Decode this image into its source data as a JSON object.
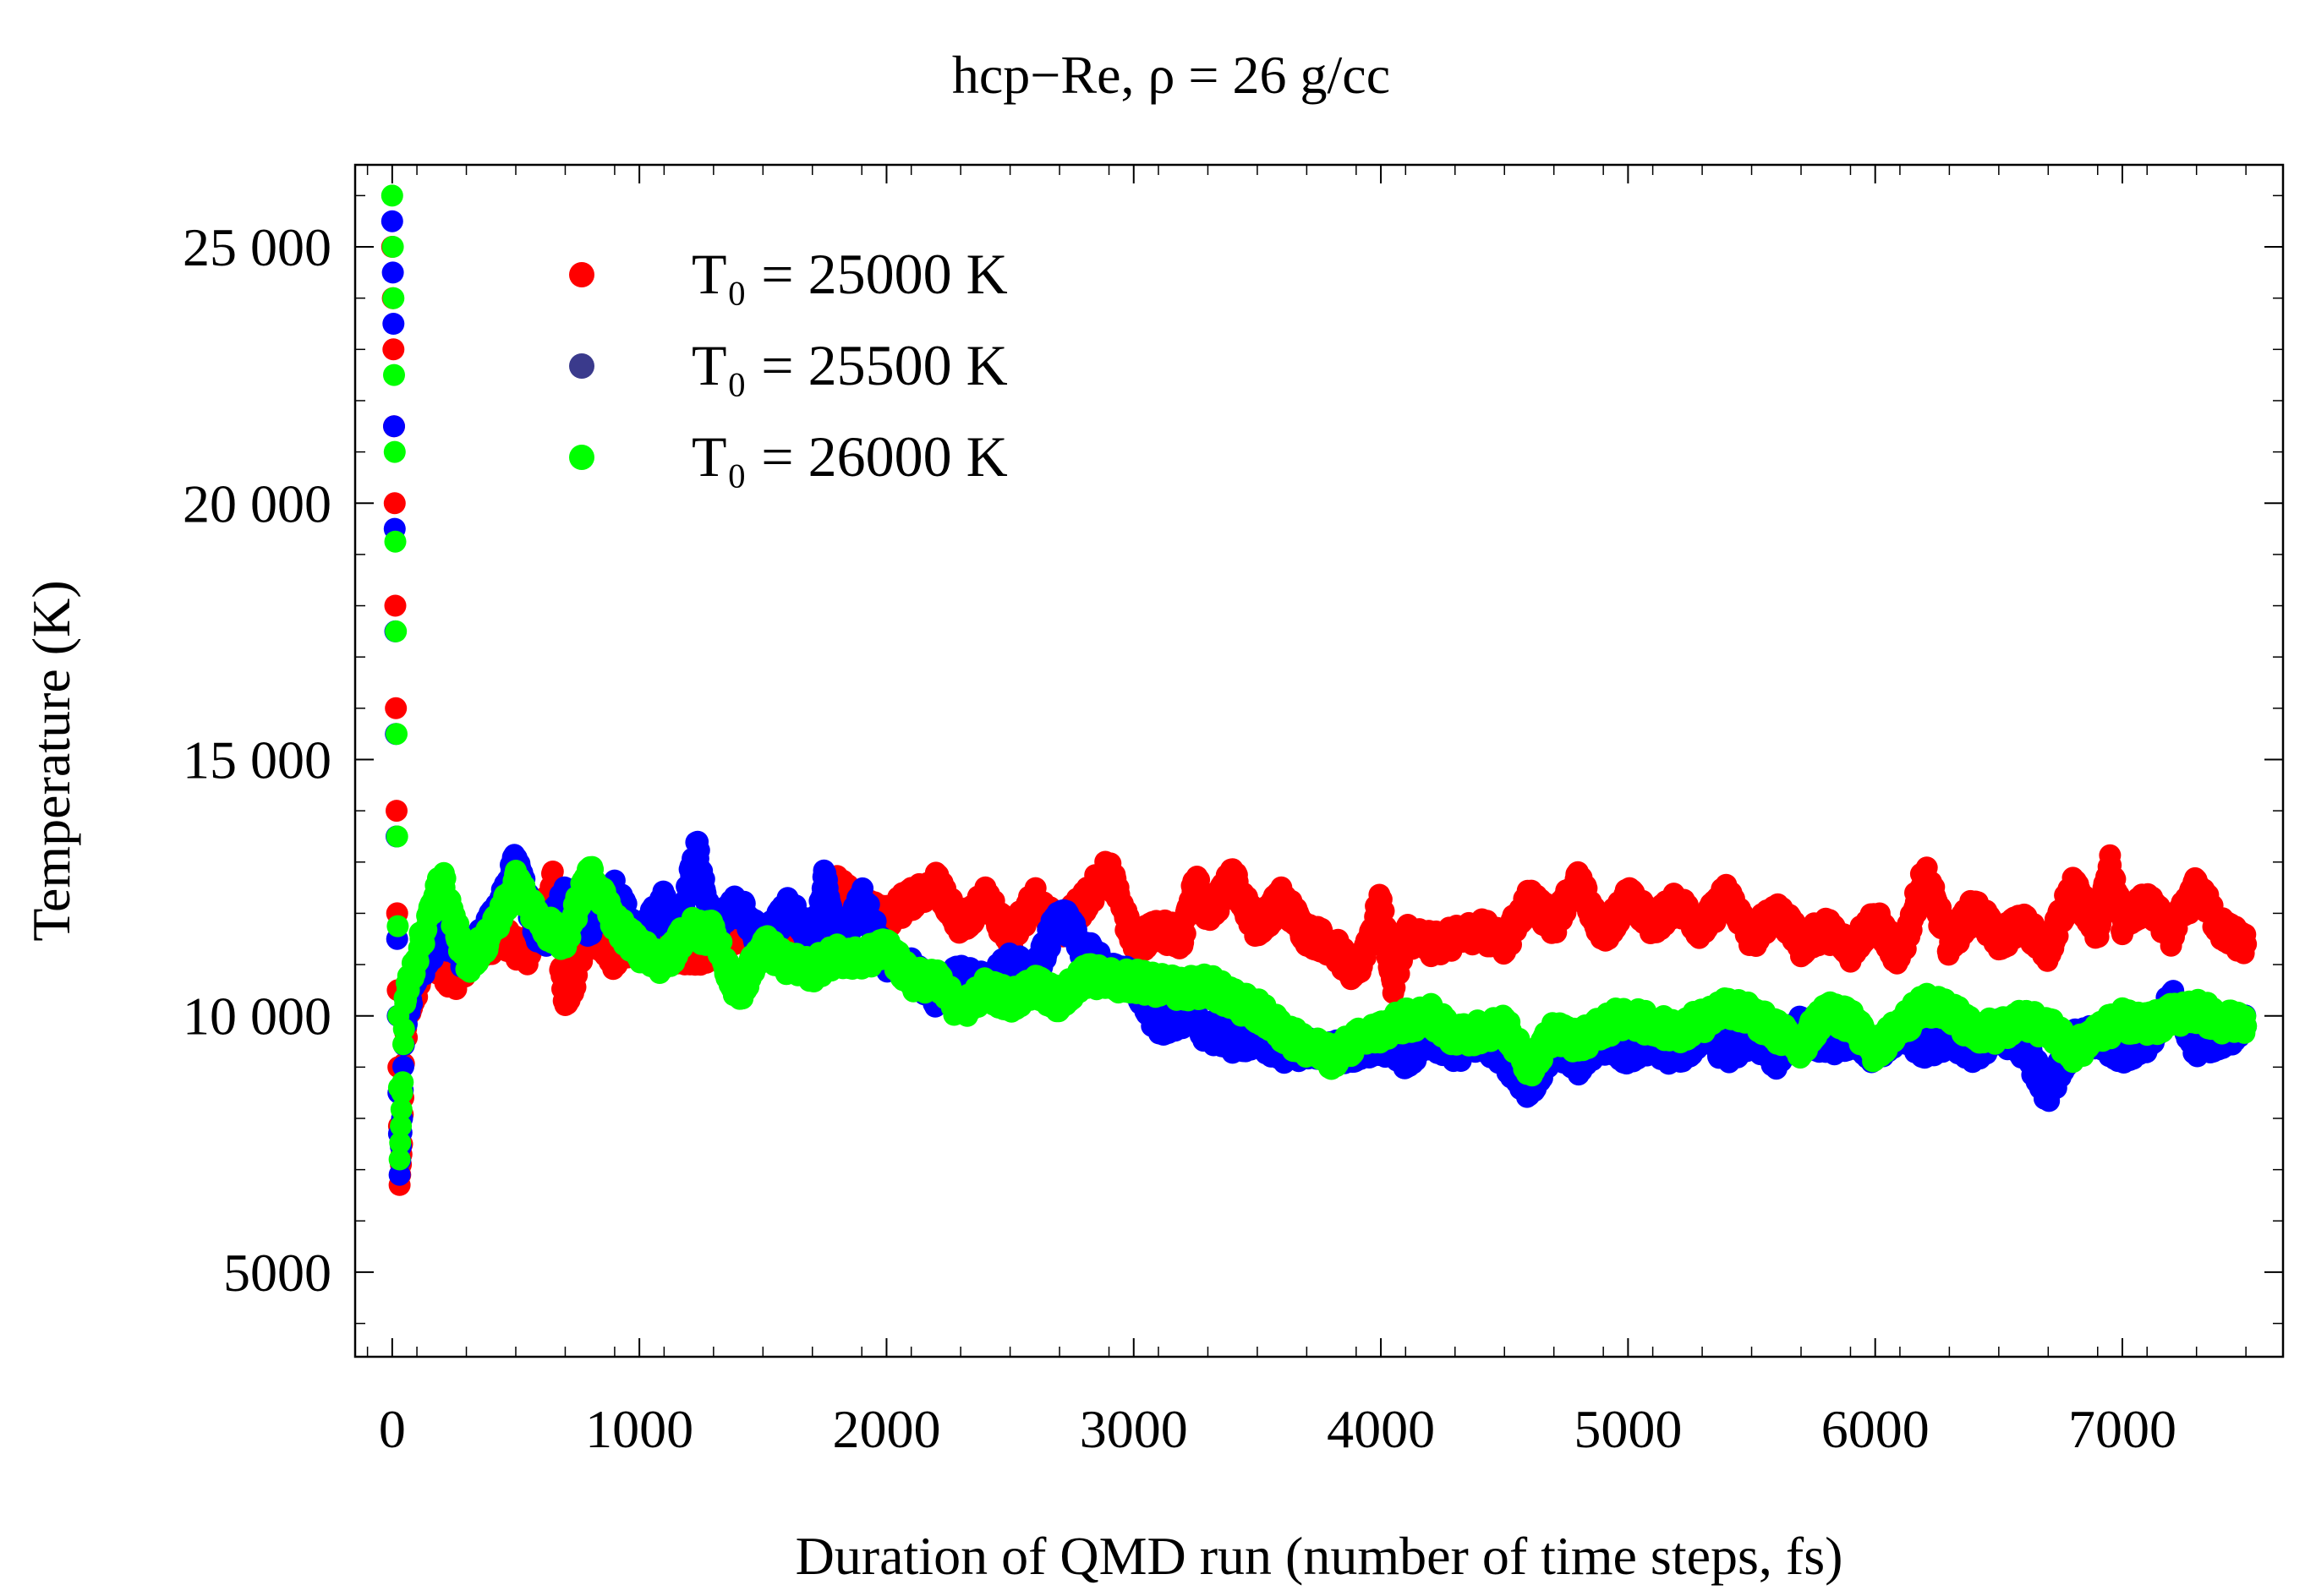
{
  "chart_data": {
    "type": "scatter",
    "title": "hcp−Re, ρ = 26 g/cc",
    "xlabel": "Duration of QMD run (number of time steps, fs)",
    "ylabel": "Temperature (K)",
    "xlim": [
      -150,
      7650
    ],
    "ylim": [
      3350,
      26600
    ],
    "x_ticks": [
      0,
      1000,
      2000,
      3000,
      4000,
      5000,
      6000,
      7000
    ],
    "x_tick_labels": [
      "0",
      "1000",
      "2000",
      "3000",
      "4000",
      "5000",
      "6000",
      "7000"
    ],
    "y_ticks": [
      5000,
      10000,
      15000,
      20000,
      25000
    ],
    "y_tick_labels": [
      "5000",
      "10 000",
      "15 000",
      "20 000",
      "25 000"
    ],
    "grid": false,
    "legend_position": "top-left",
    "series": [
      {
        "name": "To = 25000 K",
        "legend_label": "T₀ = 25000 K",
        "color": "#ff0000",
        "points": [
          [
            0,
            25000
          ],
          [
            5,
            23000
          ],
          [
            10,
            20000
          ],
          [
            15,
            16000
          ],
          [
            20,
            12000
          ],
          [
            25,
            9000
          ],
          [
            30,
            6700
          ],
          [
            40,
            7500
          ],
          [
            50,
            9500
          ],
          [
            80,
            10300
          ],
          [
            150,
            11200
          ],
          [
            250,
            10700
          ],
          [
            350,
            11400
          ],
          [
            450,
            11500
          ],
          [
            550,
            11200
          ],
          [
            650,
            12600
          ],
          [
            700,
            10100
          ],
          [
            800,
            11800
          ],
          [
            900,
            11100
          ],
          [
            1000,
            11600
          ],
          [
            1100,
            11300
          ],
          [
            1250,
            11200
          ],
          [
            1400,
            11700
          ],
          [
            1500,
            11300
          ],
          [
            1600,
            11900
          ],
          [
            1700,
            11500
          ],
          [
            1800,
            12500
          ],
          [
            1900,
            12100
          ],
          [
            2000,
            11900
          ],
          [
            2100,
            12300
          ],
          [
            2200,
            12600
          ],
          [
            2300,
            11800
          ],
          [
            2400,
            12300
          ],
          [
            2500,
            11500
          ],
          [
            2600,
            12300
          ],
          [
            2700,
            11700
          ],
          [
            2800,
            12200
          ],
          [
            2900,
            12900
          ],
          [
            3000,
            11400
          ],
          [
            3100,
            11700
          ],
          [
            3200,
            11500
          ],
          [
            3250,
            12700
          ],
          [
            3300,
            11900
          ],
          [
            3400,
            12700
          ],
          [
            3500,
            11700
          ],
          [
            3600,
            12300
          ],
          [
            3700,
            11600
          ],
          [
            3800,
            11400
          ],
          [
            3900,
            10800
          ],
          [
            4000,
            12200
          ],
          [
            4050,
            10600
          ],
          [
            4100,
            11600
          ],
          [
            4200,
            11400
          ],
          [
            4300,
            11500
          ],
          [
            4400,
            11700
          ],
          [
            4500,
            11400
          ],
          [
            4600,
            12300
          ],
          [
            4700,
            11800
          ],
          [
            4800,
            12600
          ],
          [
            4900,
            11600
          ],
          [
            5000,
            12300
          ],
          [
            5100,
            11800
          ],
          [
            5200,
            12200
          ],
          [
            5300,
            11700
          ],
          [
            5400,
            12400
          ],
          [
            5500,
            11500
          ],
          [
            5600,
            12100
          ],
          [
            5700,
            11400
          ],
          [
            5800,
            11700
          ],
          [
            5900,
            11300
          ],
          [
            6000,
            11900
          ],
          [
            6100,
            11100
          ],
          [
            6200,
            12800
          ],
          [
            6300,
            11400
          ],
          [
            6400,
            12100
          ],
          [
            6500,
            11500
          ],
          [
            6600,
            11800
          ],
          [
            6700,
            11300
          ],
          [
            6800,
            12500
          ],
          [
            6900,
            11700
          ],
          [
            6950,
            12900
          ],
          [
            7000,
            11800
          ],
          [
            7100,
            12200
          ],
          [
            7200,
            11600
          ],
          [
            7300,
            12500
          ],
          [
            7400,
            11700
          ],
          [
            7500,
            11400
          ]
        ]
      },
      {
        "name": "To = 25500 K",
        "legend_label": "T₀ = 25500 K",
        "legend_color": "#3a3a8c",
        "color": "#0000ff",
        "points": [
          [
            0,
            25500
          ],
          [
            5,
            23500
          ],
          [
            10,
            19500
          ],
          [
            15,
            15500
          ],
          [
            20,
            11500
          ],
          [
            25,
            8500
          ],
          [
            30,
            6900
          ],
          [
            40,
            8000
          ],
          [
            50,
            9900
          ],
          [
            100,
            10800
          ],
          [
            200,
            11600
          ],
          [
            300,
            11100
          ],
          [
            400,
            11800
          ],
          [
            500,
            13000
          ],
          [
            600,
            11400
          ],
          [
            700,
            12300
          ],
          [
            800,
            11700
          ],
          [
            900,
            12400
          ],
          [
            1000,
            11500
          ],
          [
            1100,
            12200
          ],
          [
            1150,
            11400
          ],
          [
            1230,
            13300
          ],
          [
            1300,
            11600
          ],
          [
            1400,
            12200
          ],
          [
            1500,
            11400
          ],
          [
            1600,
            12100
          ],
          [
            1700,
            11500
          ],
          [
            1750,
            12700
          ],
          [
            1800,
            11300
          ],
          [
            1900,
            12300
          ],
          [
            2000,
            11100
          ],
          [
            2100,
            10900
          ],
          [
            2200,
            10400
          ],
          [
            2300,
            10800
          ],
          [
            2400,
            10600
          ],
          [
            2500,
            11000
          ],
          [
            2600,
            10800
          ],
          [
            2700,
            12000
          ],
          [
            2800,
            11300
          ],
          [
            2900,
            10800
          ],
          [
            3000,
            10700
          ],
          [
            3100,
            9800
          ],
          [
            3200,
            10000
          ],
          [
            3300,
            9700
          ],
          [
            3400,
            9500
          ],
          [
            3500,
            9600
          ],
          [
            3600,
            9300
          ],
          [
            3700,
            9400
          ],
          [
            3800,
            9300
          ],
          [
            3900,
            9300
          ],
          [
            4000,
            9500
          ],
          [
            4100,
            9200
          ],
          [
            4200,
            9600
          ],
          [
            4300,
            9300
          ],
          [
            4400,
            9600
          ],
          [
            4500,
            9200
          ],
          [
            4600,
            8600
          ],
          [
            4700,
            9400
          ],
          [
            4800,
            9100
          ],
          [
            4900,
            9500
          ],
          [
            5000,
            9300
          ],
          [
            5100,
            9500
          ],
          [
            5200,
            9200
          ],
          [
            5300,
            9700
          ],
          [
            5400,
            9300
          ],
          [
            5500,
            9600
          ],
          [
            5600,
            9200
          ],
          [
            5700,
            9800
          ],
          [
            5800,
            9400
          ],
          [
            5900,
            9600
          ],
          [
            6000,
            9300
          ],
          [
            6100,
            9700
          ],
          [
            6200,
            9400
          ],
          [
            6300,
            9600
          ],
          [
            6400,
            9300
          ],
          [
            6500,
            9700
          ],
          [
            6600,
            9400
          ],
          [
            6700,
            8500
          ],
          [
            6800,
            9500
          ],
          [
            6900,
            9600
          ],
          [
            7000,
            9300
          ],
          [
            7100,
            9500
          ],
          [
            7200,
            10300
          ],
          [
            7300,
            9400
          ],
          [
            7400,
            9600
          ],
          [
            7500,
            9800
          ]
        ]
      },
      {
        "name": "To = 26000 K",
        "legend_label": "T₀ = 26000 K",
        "color": "#00ff00",
        "points": [
          [
            0,
            26000
          ],
          [
            5,
            24000
          ],
          [
            10,
            21000
          ],
          [
            15,
            17500
          ],
          [
            20,
            13500
          ],
          [
            25,
            10000
          ],
          [
            30,
            7200
          ],
          [
            40,
            8500
          ],
          [
            50,
            10300
          ],
          [
            100,
            11200
          ],
          [
            200,
            12700
          ],
          [
            300,
            11000
          ],
          [
            400,
            11600
          ],
          [
            500,
            12600
          ],
          [
            600,
            11800
          ],
          [
            700,
            11500
          ],
          [
            800,
            12800
          ],
          [
            900,
            11800
          ],
          [
            1000,
            11300
          ],
          [
            1100,
            11000
          ],
          [
            1200,
            11700
          ],
          [
            1300,
            11600
          ],
          [
            1400,
            10400
          ],
          [
            1500,
            11400
          ],
          [
            1600,
            11000
          ],
          [
            1700,
            10900
          ],
          [
            1800,
            11200
          ],
          [
            1900,
            11100
          ],
          [
            2000,
            11300
          ],
          [
            2100,
            10700
          ],
          [
            2200,
            10700
          ],
          [
            2300,
            10100
          ],
          [
            2400,
            10500
          ],
          [
            2500,
            10300
          ],
          [
            2600,
            10600
          ],
          [
            2700,
            10300
          ],
          [
            2800,
            10800
          ],
          [
            2900,
            10700
          ],
          [
            3000,
            10700
          ],
          [
            3100,
            10600
          ],
          [
            3200,
            10500
          ],
          [
            3300,
            10600
          ],
          [
            3400,
            10300
          ],
          [
            3500,
            10100
          ],
          [
            3600,
            9700
          ],
          [
            3700,
            9400
          ],
          [
            3800,
            9200
          ],
          [
            3900,
            9500
          ],
          [
            4000,
            9700
          ],
          [
            4100,
            9900
          ],
          [
            4200,
            10000
          ],
          [
            4300,
            9600
          ],
          [
            4400,
            9700
          ],
          [
            4500,
            9800
          ],
          [
            4600,
            9000
          ],
          [
            4700,
            9700
          ],
          [
            4800,
            9500
          ],
          [
            4900,
            9800
          ],
          [
            5000,
            10000
          ],
          [
            5100,
            9800
          ],
          [
            5200,
            9700
          ],
          [
            5300,
            9900
          ],
          [
            5400,
            10200
          ],
          [
            5500,
            10000
          ],
          [
            5600,
            9700
          ],
          [
            5700,
            9400
          ],
          [
            5800,
            10100
          ],
          [
            5900,
            9900
          ],
          [
            6000,
            9300
          ],
          [
            6100,
            9800
          ],
          [
            6200,
            10200
          ],
          [
            6300,
            10100
          ],
          [
            6400,
            9700
          ],
          [
            6500,
            9700
          ],
          [
            6600,
            9900
          ],
          [
            6700,
            9800
          ],
          [
            6800,
            9300
          ],
          [
            6900,
            9700
          ],
          [
            7000,
            9900
          ],
          [
            7100,
            9800
          ],
          [
            7200,
            10000
          ],
          [
            7300,
            10100
          ],
          [
            7400,
            9900
          ],
          [
            7500,
            9800
          ]
        ]
      }
    ]
  }
}
